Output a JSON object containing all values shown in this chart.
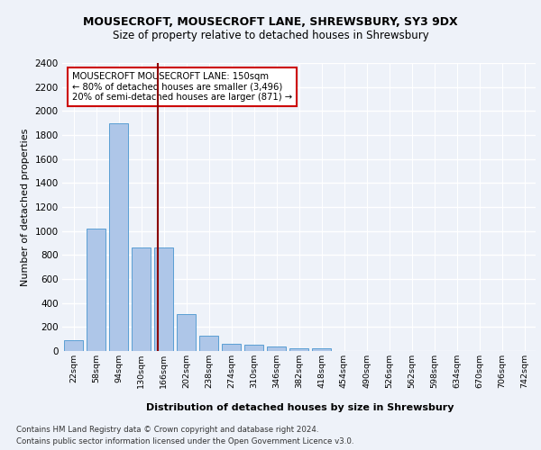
{
  "title1": "MOUSECROFT, MOUSECROFT LANE, SHREWSBURY, SY3 9DX",
  "title2": "Size of property relative to detached houses in Shrewsbury",
  "xlabel": "Distribution of detached houses by size in Shrewsbury",
  "ylabel": "Number of detached properties",
  "footer1": "Contains HM Land Registry data © Crown copyright and database right 2024.",
  "footer2": "Contains public sector information licensed under the Open Government Licence v3.0.",
  "categories": [
    "22sqm",
    "58sqm",
    "94sqm",
    "130sqm",
    "166sqm",
    "202sqm",
    "238sqm",
    "274sqm",
    "310sqm",
    "346sqm",
    "382sqm",
    "418sqm",
    "454sqm",
    "490sqm",
    "526sqm",
    "562sqm",
    "598sqm",
    "634sqm",
    "670sqm",
    "706sqm",
    "742sqm"
  ],
  "values": [
    90,
    1020,
    1900,
    860,
    860,
    310,
    130,
    60,
    50,
    35,
    25,
    25,
    0,
    0,
    0,
    0,
    0,
    0,
    0,
    0,
    0
  ],
  "bar_color": "#aec6e8",
  "bar_edge_color": "#5a9fd4",
  "red_line_x": 3.72,
  "annotation_title": "MOUSECROFT MOUSECROFT LANE: 150sqm",
  "annotation_line1": "← 80% of detached houses are smaller (3,496)",
  "annotation_line2": "20% of semi-detached houses are larger (871) →",
  "ylim": [
    0,
    2400
  ],
  "yticks": [
    0,
    200,
    400,
    600,
    800,
    1000,
    1200,
    1400,
    1600,
    1800,
    2000,
    2200,
    2400
  ],
  "bg_color": "#eef2f9",
  "plot_bg_color": "#eef2f9",
  "grid_color": "#ffffff"
}
